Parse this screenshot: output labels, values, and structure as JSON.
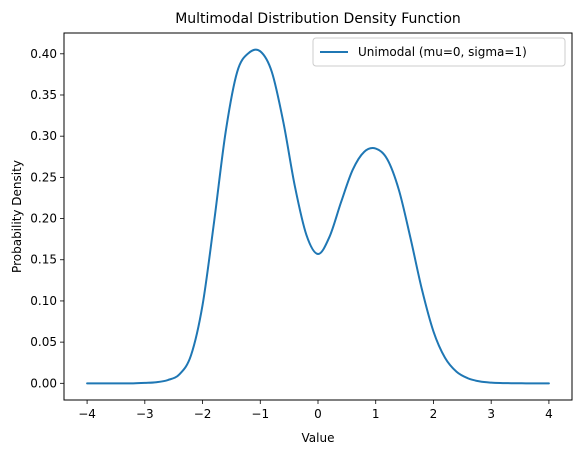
{
  "chart_data": {
    "type": "line",
    "title": "Multimodal Distribution Density Function",
    "xlabel": "Value",
    "ylabel": "Probability Density",
    "xlim": [
      -4.4,
      4.4
    ],
    "ylim": [
      -0.02025,
      0.42525
    ],
    "x_ticks": [
      -4,
      -3,
      -2,
      -1,
      0,
      1,
      2,
      3,
      4
    ],
    "x_tick_labels": [
      "−4",
      "−3",
      "−2",
      "−1",
      "0",
      "1",
      "2",
      "3",
      "4"
    ],
    "y_ticks": [
      0.0,
      0.05,
      0.1,
      0.15,
      0.2,
      0.25,
      0.3,
      0.35,
      0.4
    ],
    "y_tick_labels": [
      "0.00",
      "0.05",
      "0.10",
      "0.15",
      "0.20",
      "0.25",
      "0.30",
      "0.35",
      "0.40"
    ],
    "grid": false,
    "legend_position": "top-right",
    "series": [
      {
        "name": "Unimodal (mu=0, sigma=1)",
        "color": "#1f77b4",
        "x": [
          -4.0,
          -3.8,
          -3.6,
          -3.4,
          -3.2,
          -3.0,
          -2.8,
          -2.6,
          -2.4,
          -2.2,
          -2.0,
          -1.8,
          -1.6,
          -1.4,
          -1.2,
          -1.0,
          -0.8,
          -0.6,
          -0.4,
          -0.2,
          0.0,
          0.2,
          0.4,
          0.6,
          0.8,
          1.0,
          1.2,
          1.4,
          1.6,
          1.8,
          2.0,
          2.2,
          2.4,
          2.6,
          2.8,
          3.0,
          3.2,
          3.4,
          3.6,
          3.8,
          4.0
        ],
        "y": [
          0.0,
          0.0,
          0.0,
          0.0,
          0.0,
          0.0005,
          0.0013,
          0.004,
          0.011,
          0.034,
          0.095,
          0.196,
          0.305,
          0.378,
          0.401,
          0.403,
          0.378,
          0.317,
          0.239,
          0.18,
          0.157,
          0.178,
          0.22,
          0.259,
          0.281,
          0.285,
          0.272,
          0.235,
          0.177,
          0.114,
          0.063,
          0.031,
          0.014,
          0.006,
          0.0023,
          0.0008,
          0.0003,
          0.0001,
          0.0,
          0.0,
          0.0
        ]
      }
    ]
  }
}
